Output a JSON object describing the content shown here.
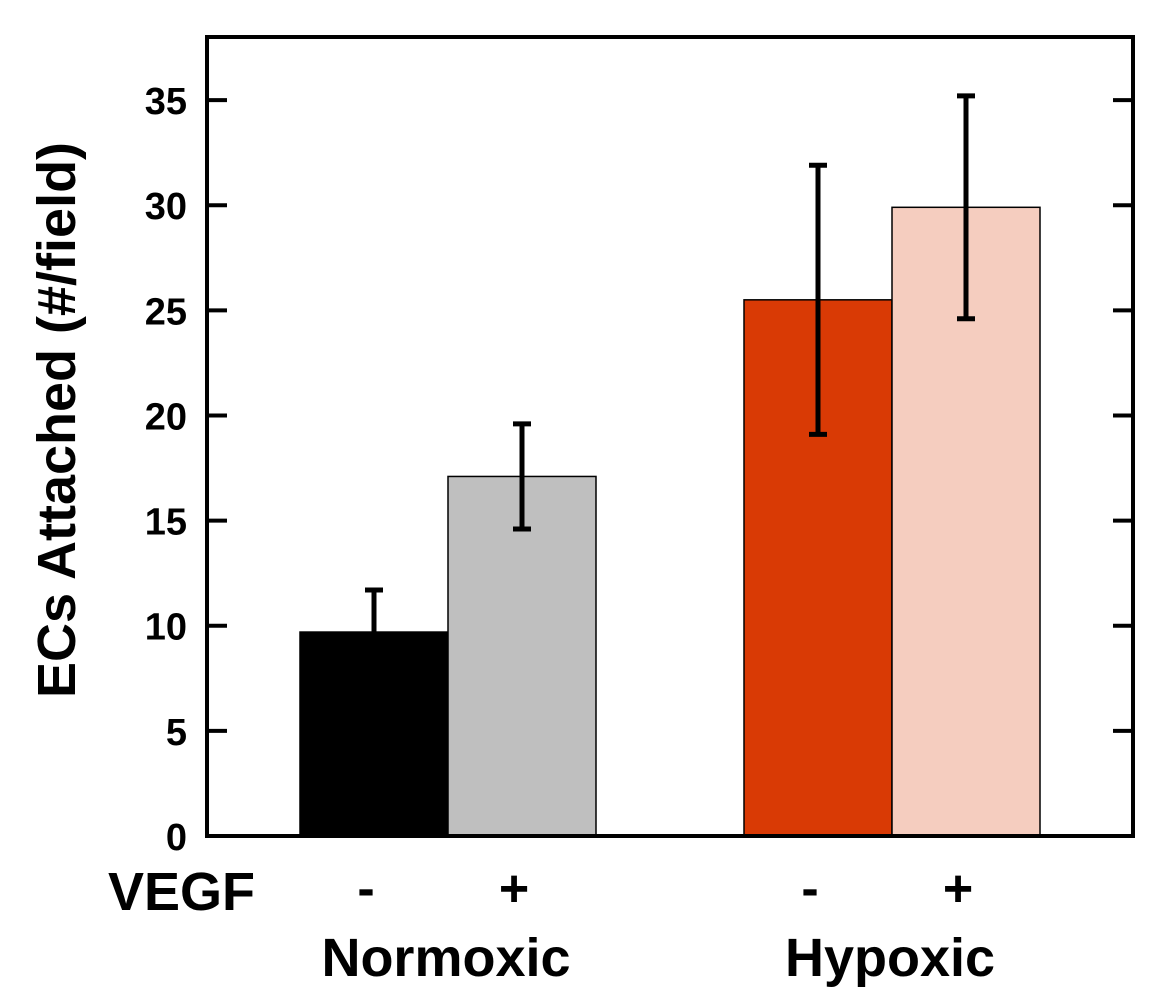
{
  "chart_data": {
    "type": "bar",
    "title": "",
    "xlabel": "",
    "ylabel": "ECs Attached (#/field)",
    "ylim": [
      0,
      38
    ],
    "yticks": [
      0,
      5,
      10,
      15,
      20,
      25,
      30,
      35
    ],
    "factor_label": "VEGF",
    "groups": [
      {
        "name": "Normoxic",
        "bars": [
          {
            "vegf": "-",
            "value": 9.7,
            "error": 2.0,
            "color": "#000000"
          },
          {
            "vegf": "+",
            "value": 17.1,
            "error": 2.5,
            "color": "#bfbfbf"
          }
        ]
      },
      {
        "name": "Hypoxic",
        "bars": [
          {
            "vegf": "-",
            "value": 25.5,
            "error": 6.4,
            "color": "#d93a05"
          },
          {
            "vegf": "+",
            "value": 29.9,
            "error": 5.3,
            "color": "#f5cdbf"
          }
        ]
      }
    ],
    "grid": false,
    "legend": "none"
  }
}
